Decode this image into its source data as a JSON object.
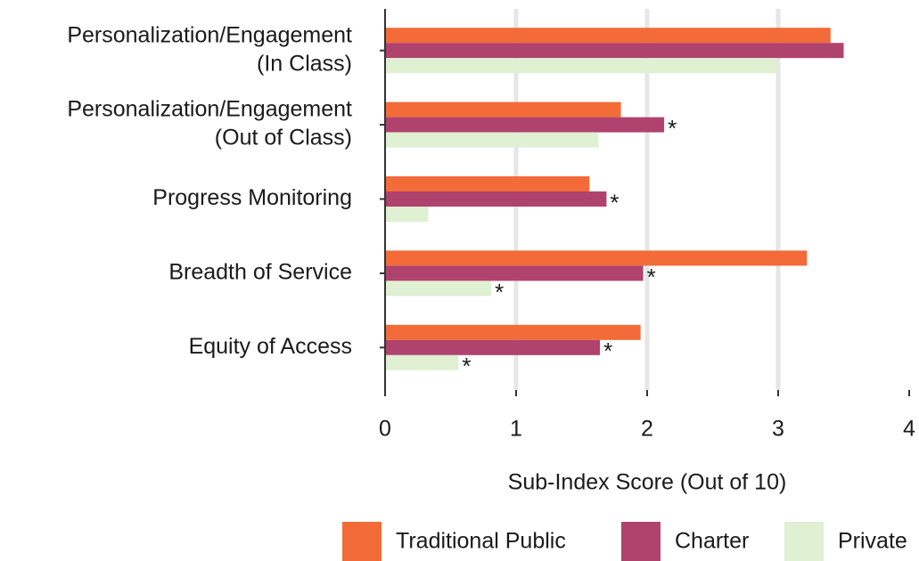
{
  "chart_data": {
    "type": "hbar",
    "categories": [
      [
        "Personalization/Engagement",
        "(In Class)"
      ],
      [
        "Personalization/Engagement",
        "(Out of Class)"
      ],
      [
        "Progress Monitoring"
      ],
      [
        "Breadth of Service"
      ],
      [
        "Equity of Access"
      ]
    ],
    "series": [
      {
        "name": "Traditional Public",
        "color": "#f26b38",
        "values": [
          3.4,
          1.8,
          1.56,
          3.22,
          1.95
        ]
      },
      {
        "name": "Charter",
        "color": "#b0426e",
        "values": [
          3.5,
          2.13,
          1.69,
          1.97,
          1.64
        ],
        "annotations": [
          null,
          "*",
          "*",
          "*",
          "*"
        ]
      },
      {
        "name": "Private",
        "color": "#dff0d3",
        "values": [
          2.99,
          1.63,
          0.33,
          0.81,
          0.56
        ],
        "annotations": [
          null,
          null,
          null,
          "*",
          "*"
        ]
      }
    ],
    "xlabel": "Sub-Index Score (Out of 10)",
    "xlim": [
      0,
      4
    ],
    "xticks": [
      0,
      1,
      2,
      3,
      4
    ],
    "grid": true,
    "legend": "bottom"
  }
}
